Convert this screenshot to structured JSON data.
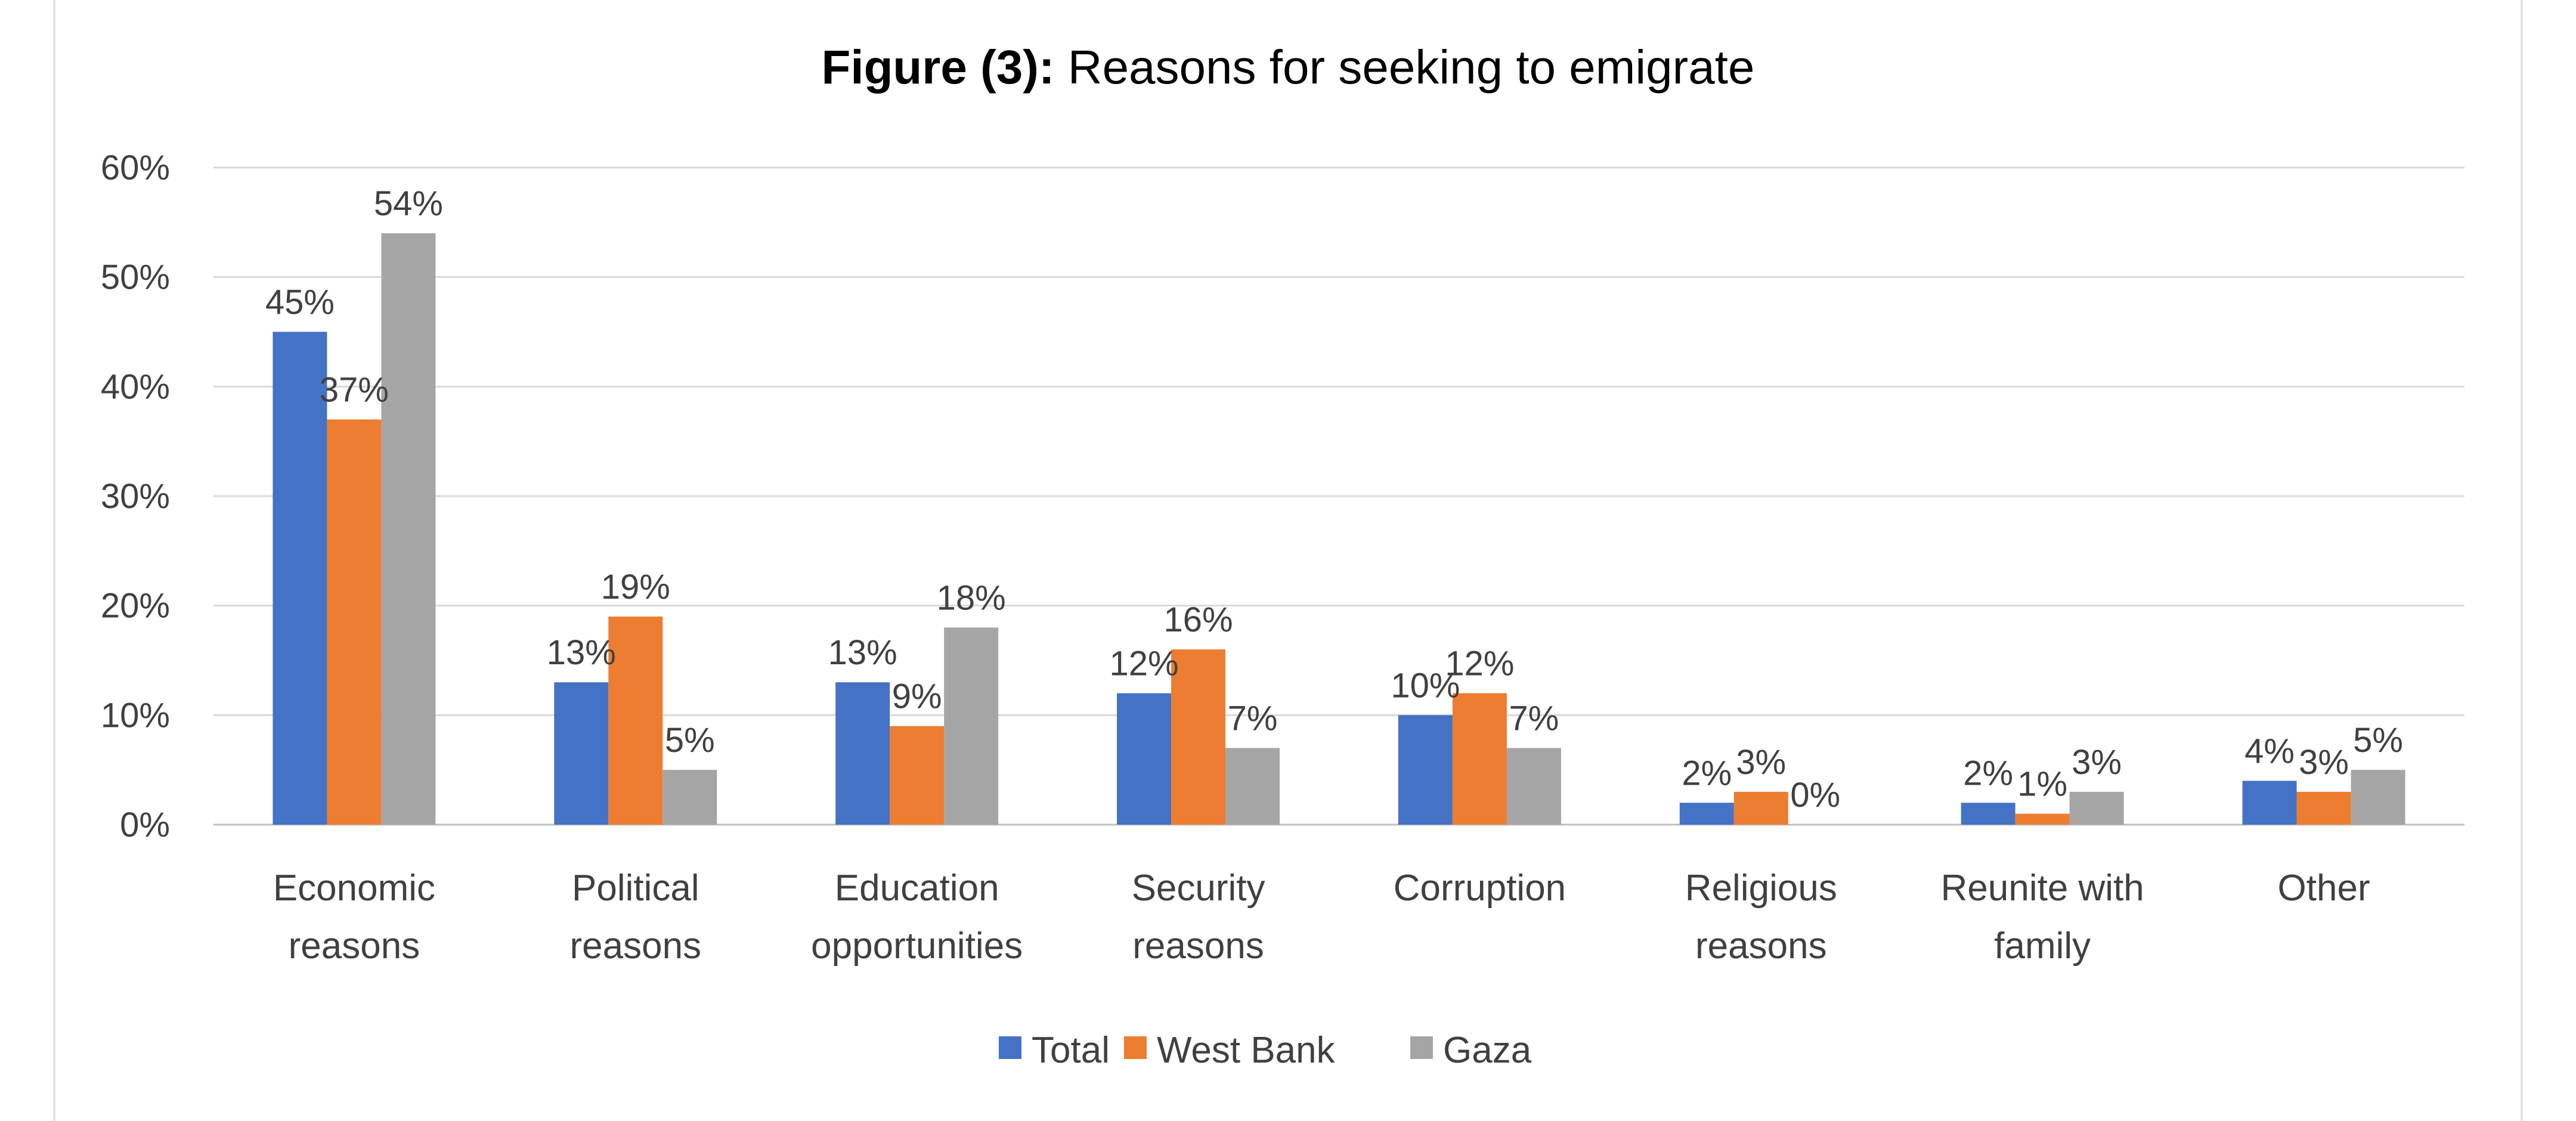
{
  "chart_data": {
    "type": "bar",
    "title_bold": "Figure (3):",
    "title_rest": " Reasons for seeking to emigrate",
    "categories": [
      [
        "Economic",
        "reasons"
      ],
      [
        "Political",
        "reasons"
      ],
      [
        "Education",
        "opportunities"
      ],
      [
        "Security",
        "reasons"
      ],
      [
        "Corruption"
      ],
      [
        "Religious",
        "reasons"
      ],
      [
        "Reunite with",
        "family"
      ],
      [
        "Other"
      ]
    ],
    "series": [
      {
        "name": "Total",
        "color": "#4472C4",
        "values": [
          45,
          13,
          13,
          12,
          10,
          2,
          2,
          4
        ]
      },
      {
        "name": "West Bank",
        "color": "#ED7D31",
        "values": [
          37,
          19,
          9,
          16,
          12,
          3,
          1,
          3
        ]
      },
      {
        "name": "Gaza",
        "color": "#A5A5A5",
        "values": [
          54,
          5,
          18,
          7,
          7,
          0,
          3,
          5
        ]
      }
    ],
    "ylim": [
      0,
      60
    ],
    "yticks": [
      "0%",
      "10%",
      "20%",
      "30%",
      "40%",
      "50%",
      "60%"
    ],
    "ytick_values": [
      0,
      10,
      20,
      30,
      40,
      50,
      60
    ],
    "value_suffix": "%",
    "grid": true,
    "legend": "bottom",
    "xlabel": "",
    "ylabel": ""
  }
}
